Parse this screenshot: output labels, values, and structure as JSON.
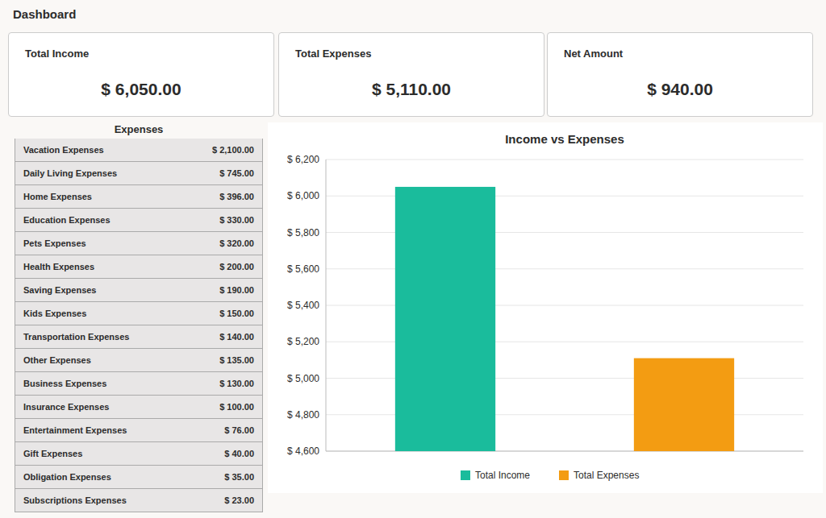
{
  "title": "Dashboard",
  "cards": {
    "categories": [
      "Total Income",
      "Total Expenses",
      "Net Amount"
    ],
    "values": [
      6050.0,
      5110.0,
      940.0
    ],
    "value_labels": [
      "$ 6,050.00",
      "$ 5,110.00",
      "$ 940.00"
    ]
  },
  "table": {
    "title": "Expenses",
    "categories": [
      "Vacation Expenses",
      "Daily Living Expenses",
      "Home Expenses",
      "Education Expenses",
      "Pets Expenses",
      "Health Expenses",
      "Saving Expenses",
      "Kids Expenses",
      "Transportation Expenses",
      "Other Expenses",
      "Business Expenses",
      "Insurance Expenses",
      "Entertainment Expenses",
      "Gift Expenses",
      "Obligation Expenses",
      "Subscriptions Expenses"
    ],
    "values": [
      2100.0,
      745.0,
      396.0,
      330.0,
      320.0,
      200.0,
      190.0,
      150.0,
      140.0,
      135.0,
      130.0,
      100.0,
      76.0,
      40.0,
      35.0,
      23.0
    ],
    "value_labels": [
      "$ 2,100.00",
      "$ 745.00",
      "$ 396.00",
      "$ 330.00",
      "$ 320.00",
      "$ 200.00",
      "$ 190.00",
      "$ 150.00",
      "$ 140.00",
      "$ 135.00",
      "$ 130.00",
      "$ 100.00",
      "$ 76.00",
      "$ 40.00",
      "$ 35.00",
      "$ 23.00"
    ]
  },
  "chart_data": {
    "type": "bar",
    "title": "Income vs Expenses",
    "categories": [
      null
    ],
    "series": [
      {
        "name": "Total Income",
        "color": "#1abc9c",
        "values": [
          6050.0
        ]
      },
      {
        "name": "Total Expenses",
        "color": "#f39c12",
        "values": [
          5110.0
        ]
      }
    ],
    "ylim": [
      4600,
      6200
    ],
    "yticks": [
      {
        "value": 4600,
        "label": "$ 4,600"
      },
      {
        "value": 4800,
        "label": "$ 4,800"
      },
      {
        "value": 5000,
        "label": "$ 5,000"
      },
      {
        "value": 5200,
        "label": "$ 5,200"
      },
      {
        "value": 5400,
        "label": "$ 5,400"
      },
      {
        "value": 5600,
        "label": "$ 5,600"
      },
      {
        "value": 5800,
        "label": "$ 5,800"
      },
      {
        "value": 6000,
        "label": "$ 6,000"
      },
      {
        "value": 6200,
        "label": "$ 6,200"
      }
    ],
    "grid": true,
    "legend": "bottom"
  }
}
